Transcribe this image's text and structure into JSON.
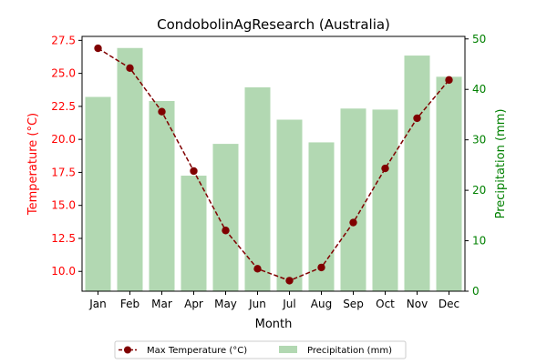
{
  "chart_data": {
    "type": "bar",
    "title": "CondobolinAgResearch (Australia)",
    "xlabel": "Month",
    "categories": [
      "Jan",
      "Feb",
      "Mar",
      "Apr",
      "May",
      "Jun",
      "Jul",
      "Aug",
      "Sep",
      "Oct",
      "Nov",
      "Dec"
    ],
    "y_left": {
      "label": "Temperature (°C)",
      "min": 8.5,
      "max": 27.8,
      "ticks": [
        "10.0",
        "12.5",
        "15.0",
        "17.5",
        "20.0",
        "22.5",
        "25.0",
        "27.5"
      ],
      "color": "#ff0000"
    },
    "y_right": {
      "label": "Precipitation (mm)",
      "min": 0,
      "max": 50.5,
      "ticks": [
        "0",
        "10",
        "20",
        "30",
        "40",
        "50"
      ],
      "color": "#008000"
    },
    "series": [
      {
        "name": "Max Temperature (°C)",
        "type": "line",
        "axis": "left",
        "color": "#800000",
        "values": [
          26.9,
          25.4,
          22.1,
          17.6,
          13.1,
          10.2,
          9.3,
          10.3,
          13.7,
          17.8,
          21.6,
          24.5
        ]
      },
      {
        "name": "Precipitation (mm)",
        "type": "bar",
        "axis": "right",
        "color": "#b2d8b2",
        "values": [
          38.5,
          48.2,
          37.7,
          22.9,
          29.2,
          40.4,
          34.0,
          29.5,
          36.2,
          36.0,
          46.7,
          42.5
        ]
      }
    ],
    "legend": {
      "placement": "bottom-center",
      "entries": [
        "Max Temperature (°C)",
        "Precipitation (mm)"
      ]
    },
    "grid": false
  }
}
